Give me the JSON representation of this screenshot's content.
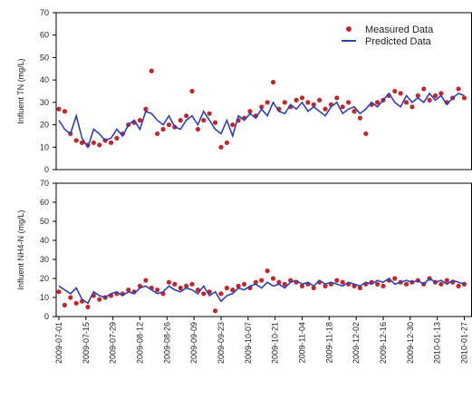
{
  "chart_data": [
    {
      "type": "line",
      "ylabel": "Influent TN (mg/L)",
      "ylim": [
        0,
        70
      ],
      "yticks": [
        0,
        10,
        20,
        30,
        40,
        50,
        60,
        70
      ],
      "xlim": [
        "2009-07-01",
        "2010-01-31"
      ],
      "legend": "upper right",
      "x": [
        "2009-07-01",
        "2009-07-04",
        "2009-07-07",
        "2009-07-10",
        "2009-07-13",
        "2009-07-16",
        "2009-07-19",
        "2009-07-22",
        "2009-07-25",
        "2009-07-28",
        "2009-07-31",
        "2009-08-03",
        "2009-08-06",
        "2009-08-09",
        "2009-08-12",
        "2009-08-15",
        "2009-08-18",
        "2009-08-21",
        "2009-08-24",
        "2009-08-27",
        "2009-08-30",
        "2009-09-02",
        "2009-09-05",
        "2009-09-08",
        "2009-09-11",
        "2009-09-14",
        "2009-09-17",
        "2009-09-20",
        "2009-09-23",
        "2009-09-26",
        "2009-09-29",
        "2009-10-02",
        "2009-10-05",
        "2009-10-08",
        "2009-10-11",
        "2009-10-14",
        "2009-10-17",
        "2009-10-20",
        "2009-10-23",
        "2009-10-26",
        "2009-10-29",
        "2009-11-01",
        "2009-11-04",
        "2009-11-07",
        "2009-11-10",
        "2009-11-13",
        "2009-11-16",
        "2009-11-19",
        "2009-11-22",
        "2009-11-25",
        "2009-11-28",
        "2009-12-01",
        "2009-12-04",
        "2009-12-07",
        "2009-12-10",
        "2009-12-13",
        "2009-12-16",
        "2009-12-19",
        "2009-12-22",
        "2009-12-25",
        "2009-12-28",
        "2009-12-31",
        "2010-01-03",
        "2010-01-06",
        "2010-01-09",
        "2010-01-12",
        "2010-01-15",
        "2010-01-18",
        "2010-01-21",
        "2010-01-24",
        "2010-01-27"
      ],
      "series": [
        {
          "name": "Measured Data",
          "type": "scatter",
          "color": "#c0282d",
          "values": [
            27,
            26,
            16,
            13,
            12,
            11,
            12,
            11,
            13,
            12,
            14,
            16,
            20,
            21,
            22,
            27,
            44,
            16,
            18,
            20,
            19,
            22,
            24,
            35,
            18,
            22,
            25,
            21,
            10,
            12,
            20,
            22,
            23,
            26,
            24,
            28,
            30,
            39,
            27,
            30,
            28,
            31,
            32,
            30,
            29,
            31,
            27,
            29,
            32,
            28,
            30,
            26,
            23,
            16,
            29,
            30,
            31,
            33,
            35,
            34,
            30,
            28,
            33,
            36,
            31,
            33,
            34,
            30,
            32,
            36,
            32
          ]
        },
        {
          "name": "Predicted Data",
          "type": "line",
          "color": "#3040b0",
          "values": [
            22,
            18,
            16,
            24,
            14,
            10,
            18,
            16,
            13,
            14,
            18,
            15,
            20,
            22,
            18,
            26,
            25,
            22,
            20,
            24,
            19,
            18,
            22,
            24,
            20,
            26,
            22,
            18,
            16,
            22,
            15,
            24,
            22,
            25,
            23,
            27,
            24,
            30,
            26,
            25,
            29,
            27,
            30,
            26,
            28,
            26,
            24,
            28,
            30,
            25,
            27,
            28,
            25,
            27,
            30,
            28,
            31,
            34,
            30,
            28,
            33,
            30,
            32,
            30,
            34,
            31,
            33,
            29,
            32,
            34,
            33
          ]
        }
      ]
    },
    {
      "type": "line",
      "ylabel": "Influent NH4-N (mg/L)",
      "ylim": [
        0,
        70
      ],
      "yticks": [
        0,
        10,
        20,
        30,
        40,
        50,
        60,
        70
      ],
      "xlim": [
        "2009-07-01",
        "2010-01-31"
      ],
      "xticks": [
        "2009-07-01",
        "2009-07-15",
        "2009-07-29",
        "2009-08-12",
        "2009-08-26",
        "2009-09-09",
        "2009-09-23",
        "2009-10-07",
        "2009-10-21",
        "2009-11-04",
        "2009-11-18",
        "2009-12-02",
        "2009-12-16",
        "2009-12-30",
        "2010-01-13",
        "2010-01-27"
      ],
      "x": [
        "2009-07-01",
        "2009-07-04",
        "2009-07-07",
        "2009-07-10",
        "2009-07-13",
        "2009-07-16",
        "2009-07-19",
        "2009-07-22",
        "2009-07-25",
        "2009-07-28",
        "2009-07-31",
        "2009-08-03",
        "2009-08-06",
        "2009-08-09",
        "2009-08-12",
        "2009-08-15",
        "2009-08-18",
        "2009-08-21",
        "2009-08-24",
        "2009-08-27",
        "2009-08-30",
        "2009-09-02",
        "2009-09-05",
        "2009-09-08",
        "2009-09-11",
        "2009-09-14",
        "2009-09-17",
        "2009-09-20",
        "2009-09-23",
        "2009-09-26",
        "2009-09-29",
        "2009-10-02",
        "2009-10-05",
        "2009-10-08",
        "2009-10-11",
        "2009-10-14",
        "2009-10-17",
        "2009-10-20",
        "2009-10-23",
        "2009-10-26",
        "2009-10-29",
        "2009-11-01",
        "2009-11-04",
        "2009-11-07",
        "2009-11-10",
        "2009-11-13",
        "2009-11-16",
        "2009-11-19",
        "2009-11-22",
        "2009-11-25",
        "2009-11-28",
        "2009-12-01",
        "2009-12-04",
        "2009-12-07",
        "2009-12-10",
        "2009-12-13",
        "2009-12-16",
        "2009-12-19",
        "2009-12-22",
        "2009-12-25",
        "2009-12-28",
        "2009-12-31",
        "2010-01-03",
        "2010-01-06",
        "2010-01-09",
        "2010-01-12",
        "2010-01-15",
        "2010-01-18",
        "2010-01-21",
        "2010-01-24",
        "2010-01-27"
      ],
      "series": [
        {
          "type": "scatter",
          "color": "#c0282d",
          "values": [
            13,
            6,
            10,
            7,
            8,
            5,
            11,
            9,
            10,
            11,
            12,
            12,
            14,
            13,
            16,
            19,
            15,
            14,
            12,
            18,
            17,
            15,
            16,
            17,
            14,
            12,
            13,
            3,
            12,
            15,
            14,
            16,
            17,
            15,
            18,
            19,
            24,
            20,
            18,
            17,
            19,
            18,
            16,
            17,
            15,
            18,
            16,
            17,
            19,
            18,
            17,
            16,
            15,
            17,
            18,
            17,
            16,
            19,
            20,
            18,
            17,
            18,
            19,
            17,
            20,
            18,
            17,
            19,
            18,
            16,
            17
          ]
        },
        {
          "type": "line",
          "color": "#3040b0",
          "values": [
            16,
            14,
            12,
            15,
            9,
            7,
            13,
            11,
            10,
            12,
            13,
            11,
            13,
            12,
            15,
            16,
            14,
            12,
            13,
            16,
            14,
            13,
            15,
            14,
            12,
            16,
            11,
            13,
            8,
            11,
            12,
            15,
            14,
            16,
            17,
            15,
            18,
            16,
            17,
            15,
            18,
            19,
            17,
            18,
            16,
            19,
            17,
            18,
            17,
            16,
            18,
            17,
            16,
            18,
            17,
            19,
            18,
            20,
            17,
            18,
            19,
            18,
            19,
            17,
            20,
            18,
            19,
            17,
            19,
            18,
            17
          ]
        }
      ]
    }
  ]
}
